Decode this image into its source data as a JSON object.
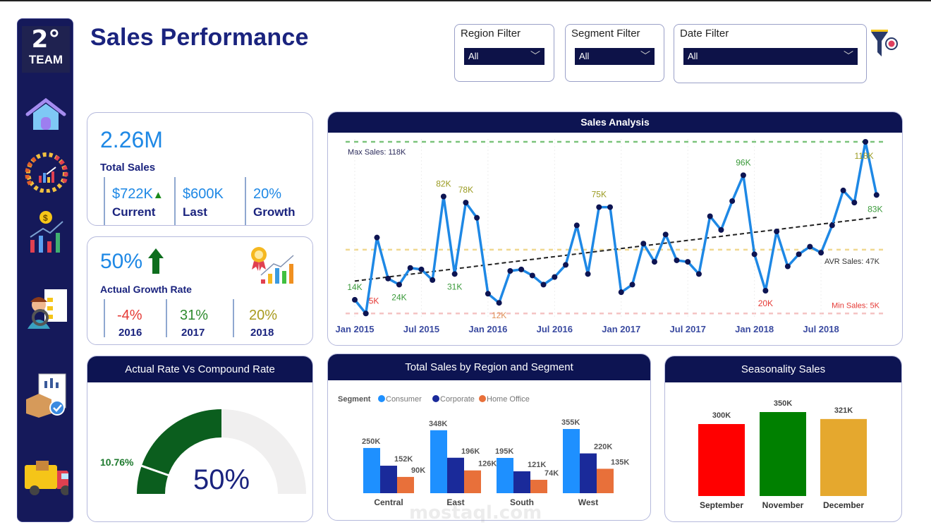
{
  "header": {
    "title": "Sales Performance"
  },
  "logo": {
    "text_top": "2°",
    "text_bottom": "TEAM"
  },
  "sidebar": {
    "items": [
      {
        "icon": "home-icon"
      },
      {
        "icon": "speedometer-icon"
      },
      {
        "icon": "money-chart-icon"
      },
      {
        "icon": "analyst-checklist-icon"
      },
      {
        "icon": "report-box-icon"
      },
      {
        "icon": "delivery-truck-icon"
      }
    ]
  },
  "filters": [
    {
      "label": "Region Filter",
      "value": "All"
    },
    {
      "label": "Segment Filter",
      "value": "All"
    },
    {
      "label": "Date Filter",
      "value": "All"
    }
  ],
  "clear_filters_icon": "funnel-clear-icon",
  "kpi_total": {
    "value": "2.26M",
    "label": "Total Sales",
    "current": {
      "value": "$722K",
      "label": "Current",
      "trend": "up"
    },
    "last": {
      "value": "$600K",
      "label": "Last"
    },
    "growth": {
      "value": "20%",
      "label": "Growth"
    }
  },
  "kpi_growth": {
    "value": "50%",
    "label": "Actual Growth Rate",
    "years": [
      {
        "value": "-4%",
        "year": "2016",
        "color": "#e53935"
      },
      {
        "value": "31%",
        "year": "2017",
        "color": "#2e8b2e"
      },
      {
        "value": "20%",
        "year": "2018",
        "color": "#a89a1e"
      }
    ]
  },
  "watermark": "mostaql.com",
  "chart_data": [
    {
      "type": "line",
      "title": "Sales Analysis",
      "x_start": "Jan 2015",
      "x_end": "Dec 2018",
      "x_interval": "month",
      "x_tick_labels": [
        "Jan 2015",
        "Jul 2015",
        "Jan 2016",
        "Jul 2016",
        "Jan 2017",
        "Jul 2017",
        "Jan 2018",
        "Jul 2018"
      ],
      "unit": "K",
      "values": [
        14,
        5,
        55,
        28,
        24,
        35,
        34,
        27,
        82,
        31,
        78,
        68,
        18,
        12,
        33,
        34,
        30,
        24,
        29,
        37,
        63,
        31,
        75,
        75,
        19,
        24,
        51,
        39,
        57,
        40,
        39,
        31,
        69,
        60,
        79,
        96,
        44,
        20,
        59,
        36,
        44,
        49,
        45,
        63,
        86,
        78,
        118,
        83
      ],
      "data_labels": [
        {
          "index": 0,
          "text": "14K",
          "color": "#3a9a3a",
          "position": "above"
        },
        {
          "index": 1,
          "text": "5K",
          "color": "#e53935",
          "position": "right"
        },
        {
          "index": 4,
          "text": "24K",
          "color": "#3a9a3a",
          "position": "below"
        },
        {
          "index": 8,
          "text": "82K",
          "color": "#9a9a20",
          "position": "above"
        },
        {
          "index": 9,
          "text": "31K",
          "color": "#3a9a3a",
          "position": "below"
        },
        {
          "index": 10,
          "text": "78K",
          "color": "#9a9a20",
          "position": "above"
        },
        {
          "index": 13,
          "text": "12K",
          "color": "#e0915a",
          "position": "below"
        },
        {
          "index": 22,
          "text": "75K",
          "color": "#9a9a20",
          "position": "above"
        },
        {
          "index": 35,
          "text": "96K",
          "color": "#3a9a3a",
          "position": "above"
        },
        {
          "index": 37,
          "text": "20K",
          "color": "#e53935",
          "position": "below"
        },
        {
          "index": 46,
          "text": "118K",
          "color": "#9a9a20",
          "position": "below"
        },
        {
          "index": 47,
          "text": "83K",
          "color": "#3a9a3a",
          "position": "below"
        }
      ],
      "reference_lines": [
        {
          "label": "Max Sales: 118K",
          "value": 118,
          "color": "#7cc47c"
        },
        {
          "label": "AVR Sales: 47K",
          "value": 47,
          "color": "#f0d890"
        },
        {
          "label": "Min Sales: 5K",
          "value": 5,
          "color": "#f4c4c4"
        }
      ],
      "trend_line": true,
      "line_color": "#1e88e5",
      "marker_color": "#0d1452",
      "ylim": [
        5,
        118
      ]
    },
    {
      "type": "bar",
      "title": "Total Sales by Region and Segment",
      "legend_title": "Segment",
      "legend_position": "top-left",
      "categories": [
        "Central",
        "East",
        "South",
        "West"
      ],
      "series": [
        {
          "name": "Consumer",
          "color": "#1e90ff",
          "values": [
            250,
            348,
            195,
            355
          ],
          "labels": [
            "250K",
            "348K",
            "195K",
            "355K"
          ]
        },
        {
          "name": "Corporate",
          "color": "#1a2a9a",
          "values": [
            152,
            196,
            121,
            220
          ],
          "labels": [
            "152K",
            "196K",
            "121K",
            "220K"
          ]
        },
        {
          "name": "Home Office",
          "color": "#e8703a",
          "values": [
            90,
            126,
            74,
            135
          ],
          "labels": [
            "90K",
            "126K",
            "74K",
            "135K"
          ]
        }
      ],
      "unit": "K"
    },
    {
      "type": "bar",
      "title": "Seasonality Sales",
      "categories": [
        "September",
        "November",
        "December"
      ],
      "values": [
        300,
        350,
        321
      ],
      "labels": [
        "300K",
        "350K",
        "321K"
      ],
      "colors": [
        "#ff0000",
        "#008000",
        "#e5a82e"
      ],
      "unit": "K"
    },
    {
      "type": "gauge",
      "title": "Actual Rate Vs Compound Rate",
      "value": 50,
      "value_label": "50%",
      "min": 0,
      "max": 100,
      "target": 10.76,
      "target_label": "10.76%",
      "fill_color": "#0b5e1e",
      "track_color": "#f0efef"
    }
  ]
}
